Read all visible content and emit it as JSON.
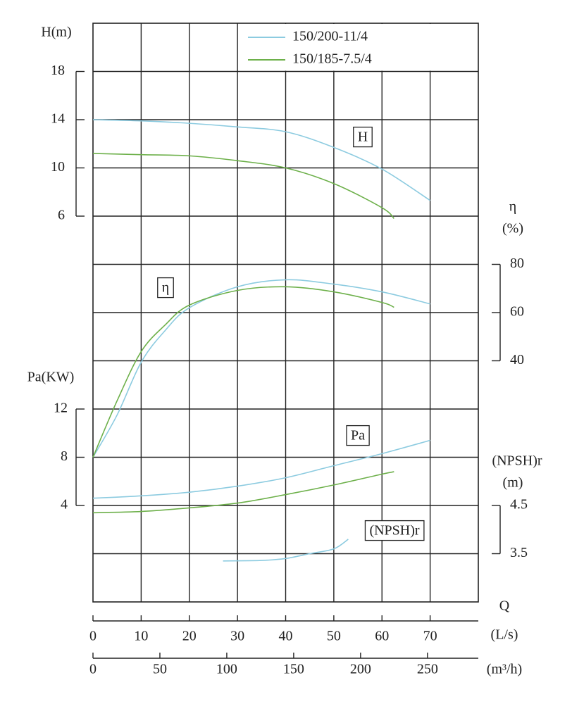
{
  "chart_data": {
    "type": "line",
    "legend": "upper right",
    "grid": true,
    "axes": {
      "H": {
        "title": "H(m)",
        "ylim": [
          -26,
          22
        ],
        "yticks": [
          6,
          10,
          14,
          18
        ],
        "side": "left"
      },
      "eta": {
        "title": [
          "η",
          "(%)"
        ],
        "ylim": [
          -60,
          180
        ],
        "yticks": [
          40,
          60,
          80
        ],
        "side": "right"
      },
      "Pa": {
        "title": "Pa(KW)",
        "ylim": [
          -4,
          44
        ],
        "yticks": [
          4,
          8,
          12
        ],
        "side": "left"
      },
      "NPSH": {
        "title": [
          "(NPSH)r",
          "(m)"
        ],
        "ylim": [
          2.5,
          14.5
        ],
        "yticks": [
          3.5,
          4.5
        ],
        "side": "right"
      }
    },
    "xaxes": [
      {
        "title": [
          "Q",
          "(L/s)"
        ],
        "xlim": [
          0,
          80
        ],
        "xticks": [
          0,
          10,
          20,
          30,
          40,
          50,
          60,
          70
        ]
      },
      {
        "title": [
          "(m³/h)"
        ],
        "xlim": [
          0,
          288
        ],
        "xticks": [
          0,
          50,
          100,
          150,
          200,
          250
        ]
      }
    ],
    "curve_labels": {
      "H": "H",
      "eta": "η",
      "Pa": "Pa",
      "NPSH": "(NPSH)r"
    },
    "series": [
      {
        "name": "150/200-11/4",
        "color": "#8ccbe0",
        "curves": {
          "H": {
            "x": [
              0,
              10,
              20,
              30,
              40,
              50,
              60,
              70
            ],
            "values": [
              14,
              13.9,
              13.7,
              13.4,
              13.0,
              11.7,
              9.9,
              7.3
            ]
          },
          "eta": {
            "x": [
              0,
              5,
              10,
              15,
              20,
              30,
              40,
              50,
              60,
              70
            ],
            "values": [
              0,
              17.5,
              39.4,
              52.6,
              62,
              70.7,
              73.6,
              71.8,
              68.6,
              63.6
            ]
          },
          "Pa": {
            "x": [
              0,
              10,
              20,
              30,
              40,
              50,
              60,
              70
            ],
            "values": [
              4.6,
              4.8,
              5.1,
              5.6,
              6.3,
              7.3,
              8.3,
              9.4
            ]
          },
          "NPSH": {
            "x": [
              27,
              35,
              40,
              45,
              50,
              53
            ],
            "values": [
              3.35,
              3.36,
              3.4,
              3.5,
              3.6,
              3.8
            ]
          }
        }
      },
      {
        "name": "150/185-7.5/4",
        "color": "#6db04a",
        "curves": {
          "H": {
            "x": [
              0,
              10,
              20,
              30,
              40,
              50,
              60,
              62.5
            ],
            "values": [
              11.2,
              11.1,
              11.0,
              10.6,
              10.0,
              8.7,
              6.7,
              5.8
            ]
          },
          "eta": {
            "x": [
              0,
              5,
              10,
              15,
              20,
              30,
              40,
              50,
              60,
              62.5
            ],
            "values": [
              0,
              23.4,
              43.8,
              54.9,
              63.1,
              69.2,
              70.7,
              68.6,
              64.2,
              62.2
            ]
          },
          "Pa": {
            "x": [
              0,
              10,
              20,
              30,
              40,
              50,
              60,
              62.5
            ],
            "values": [
              3.4,
              3.5,
              3.8,
              4.2,
              4.9,
              5.7,
              6.6,
              6.8
            ]
          }
        }
      }
    ]
  }
}
